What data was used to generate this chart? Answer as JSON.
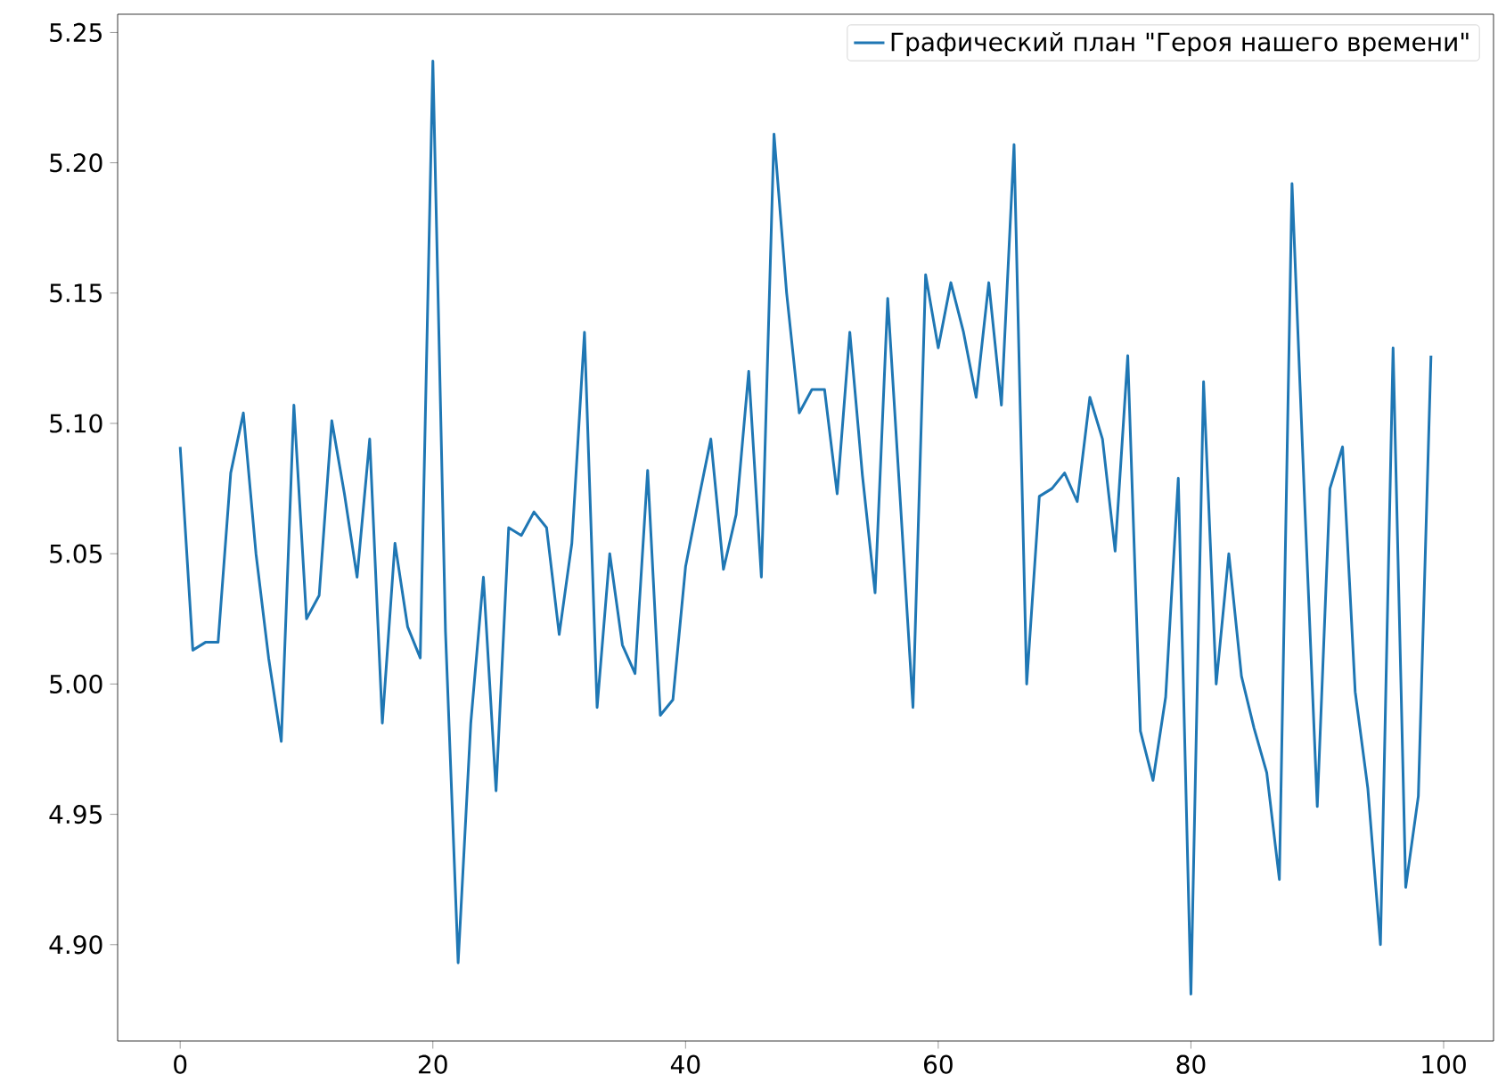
{
  "chart_data": {
    "type": "line",
    "legend": "top right",
    "marker": "none",
    "line_style": "solid",
    "grid": false,
    "xlim": [
      -4.95,
      103.95
    ],
    "ylim": [
      4.863,
      5.257
    ],
    "xticks": [
      0,
      20,
      40,
      60,
      80,
      100
    ],
    "yticks": [
      {
        "value": 4.9,
        "label": "4.90"
      },
      {
        "value": 4.95,
        "label": "4.95"
      },
      {
        "value": 5.0,
        "label": "5.00"
      },
      {
        "value": 5.05,
        "label": "5.05"
      },
      {
        "value": 5.1,
        "label": "5.10"
      },
      {
        "value": 5.15,
        "label": "5.15"
      },
      {
        "value": 5.2,
        "label": "5.20"
      },
      {
        "value": 5.25,
        "label": "5.25"
      }
    ],
    "x": [
      0,
      1,
      2,
      3,
      4,
      5,
      6,
      7,
      8,
      9,
      10,
      11,
      12,
      13,
      14,
      15,
      16,
      17,
      18,
      19,
      20,
      21,
      22,
      23,
      24,
      25,
      26,
      27,
      28,
      29,
      30,
      31,
      32,
      33,
      34,
      35,
      36,
      37,
      38,
      39,
      40,
      41,
      42,
      43,
      44,
      45,
      46,
      47,
      48,
      49,
      50,
      51,
      52,
      53,
      54,
      55,
      56,
      57,
      58,
      59,
      60,
      61,
      62,
      63,
      64,
      65,
      66,
      67,
      68,
      69,
      70,
      71,
      72,
      73,
      74,
      75,
      76,
      77,
      78,
      79,
      80,
      81,
      82,
      83,
      84,
      85,
      86,
      87,
      88,
      89,
      90,
      91,
      92,
      93,
      94,
      95,
      96,
      97,
      98,
      99
    ],
    "series": [
      {
        "name": "Графический план \"Героя нашего времени\"",
        "color": "#1f77b4",
        "values": [
          5.091,
          5.013,
          5.016,
          5.016,
          5.081,
          5.104,
          5.05,
          5.01,
          4.978,
          5.107,
          5.025,
          5.034,
          5.101,
          5.073,
          5.041,
          5.094,
          4.985,
          5.054,
          5.022,
          5.01,
          5.239,
          5.02,
          4.893,
          4.985,
          5.041,
          4.959,
          5.06,
          5.057,
          5.066,
          5.06,
          5.019,
          5.054,
          5.135,
          4.991,
          5.05,
          5.015,
          5.004,
          5.082,
          4.988,
          4.994,
          5.045,
          5.07,
          5.094,
          5.044,
          5.065,
          5.12,
          5.041,
          5.211,
          5.15,
          5.104,
          5.113,
          5.113,
          5.073,
          5.135,
          5.08,
          5.035,
          5.148,
          5.07,
          4.991,
          5.157,
          5.129,
          5.154,
          5.135,
          5.11,
          5.154,
          5.107,
          5.207,
          5.0,
          5.072,
          5.075,
          5.081,
          5.07,
          5.11,
          5.094,
          5.051,
          5.126,
          4.982,
          4.963,
          4.995,
          5.079,
          4.881,
          5.116,
          5.0,
          5.05,
          5.003,
          4.983,
          4.966,
          4.925,
          5.192,
          5.07,
          4.953,
          5.075,
          5.091,
          4.997,
          4.96,
          4.9,
          5.129,
          4.922,
          4.957,
          5.126
        ]
      }
    ]
  }
}
